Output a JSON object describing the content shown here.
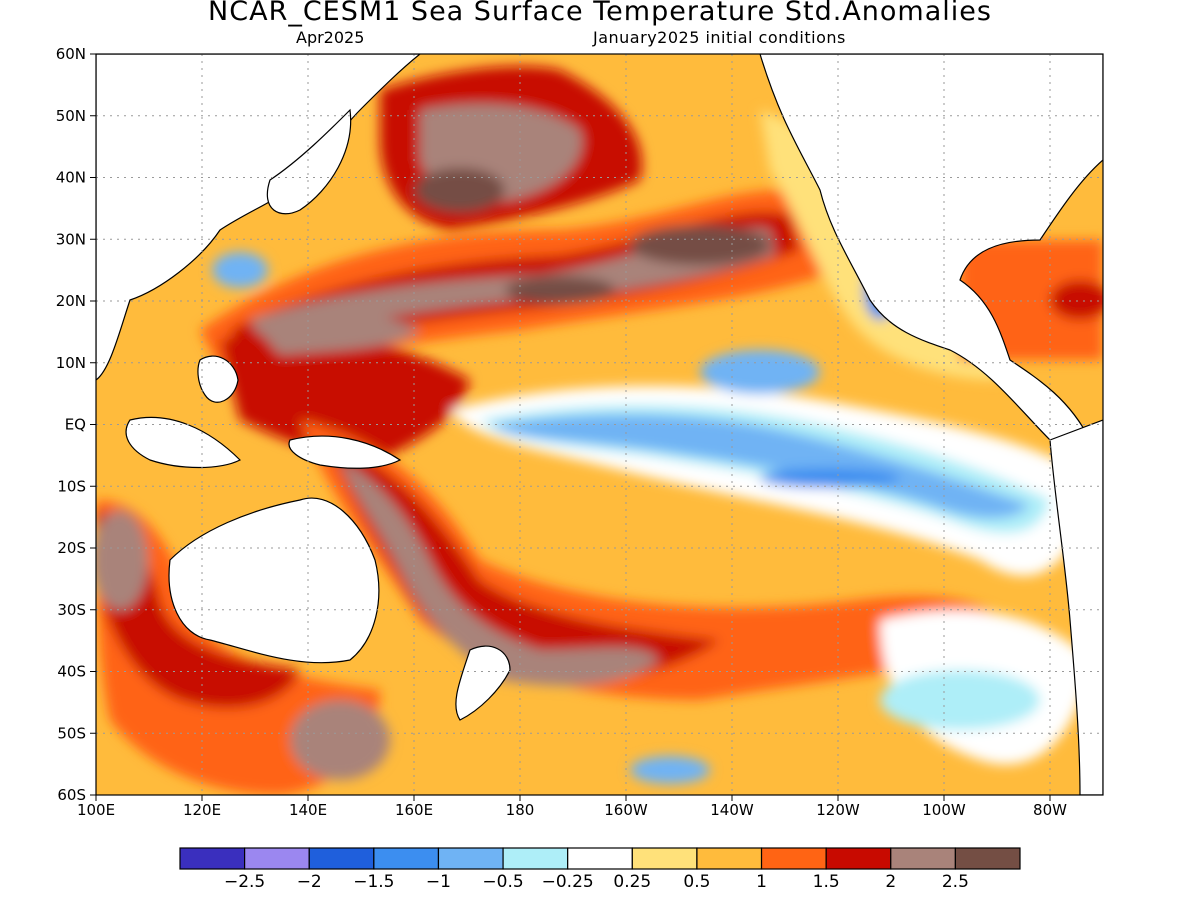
{
  "title": "NCAR_CESM1 Sea Surface Temperature Std.Anomalies",
  "subtitle_left": "Apr2025",
  "subtitle_right": "January2025 initial conditions",
  "lat_labels": [
    "60N",
    "50N",
    "40N",
    "30N",
    "20N",
    "10N",
    "EQ",
    "10S",
    "20S",
    "30S",
    "40S",
    "50S",
    "60S"
  ],
  "lon_labels": [
    "100E",
    "120E",
    "140E",
    "160E",
    "180",
    "160W",
    "140W",
    "120W",
    "100W",
    "80W"
  ],
  "colorbar": {
    "colors": [
      "#3a2fbe",
      "#9b87f0",
      "#1f5fdc",
      "#3c8ef0",
      "#6fb3f4",
      "#aeeef8",
      "#ffffff",
      "#ffe17a",
      "#ffbb3c",
      "#ff6414",
      "#c80a00",
      "#a9837a",
      "#744e44"
    ],
    "labels": [
      "−2.5",
      "−2",
      "−1.5",
      "−1",
      "−0.5",
      "−0.25",
      "0.25",
      "0.5",
      "1",
      "1.5",
      "2",
      "2.5"
    ]
  },
  "palette": {
    "land": "#ffffff",
    "coast": "#000000",
    "grid": "#9a9a9a"
  }
}
